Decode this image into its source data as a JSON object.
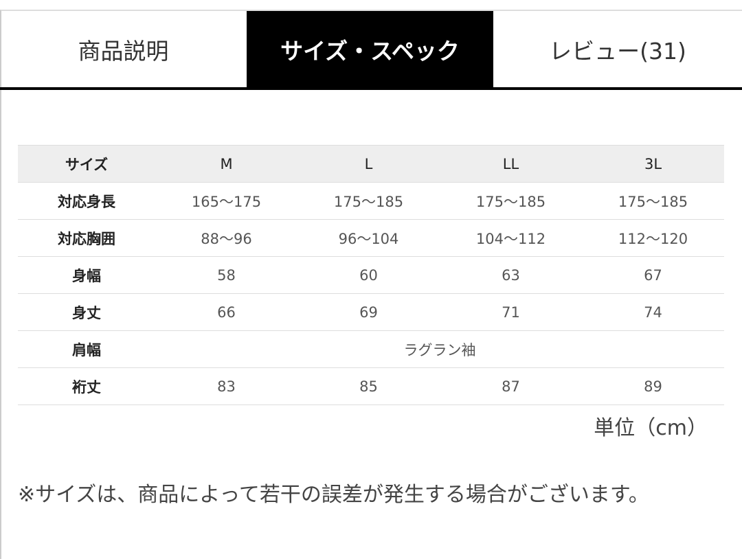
{
  "tabs": [
    {
      "label": "商品説明",
      "active": false
    },
    {
      "label": "サイズ・スペック",
      "active": true
    },
    {
      "label": "レビュー(31)",
      "active": false
    }
  ],
  "size_table": {
    "header": {
      "label": "サイズ",
      "values": [
        "M",
        "L",
        "LL",
        "3L"
      ]
    },
    "rows": [
      {
        "label": "対応身長",
        "values": [
          "165〜175",
          "175〜185",
          "175〜185",
          "175〜185"
        ]
      },
      {
        "label": "対応胸囲",
        "values": [
          "88〜96",
          "96〜104",
          "104〜112",
          "112〜120"
        ]
      },
      {
        "label": "身幅",
        "values": [
          "58",
          "60",
          "63",
          "67"
        ]
      },
      {
        "label": "身丈",
        "values": [
          "66",
          "69",
          "71",
          "74"
        ]
      },
      {
        "label": "肩幅",
        "merged": "ラグラン袖"
      },
      {
        "label": "裄丈",
        "values": [
          "83",
          "85",
          "87",
          "89"
        ]
      }
    ]
  },
  "unit": "単位（cm）",
  "note": "※サイズは、商品によって若干の誤差が発生する場合がございます。"
}
